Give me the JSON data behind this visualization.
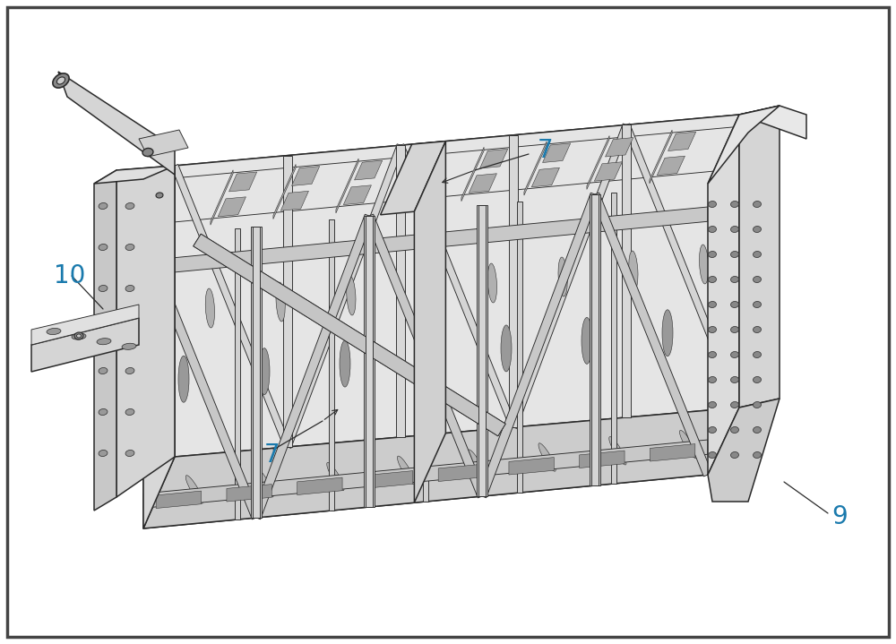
{
  "line_color": "#2a2a2a",
  "fill_top": "#e8e8e8",
  "fill_side_light": "#dcdcdc",
  "fill_side_dark": "#c8c8c8",
  "fill_bottom": "#d0d0d0",
  "fill_end": "#d8d8d8",
  "fill_white": "#f5f5f5",
  "label_color": "#1a7aad",
  "fig_width": 10.0,
  "fig_height": 7.19,
  "dpi": 100
}
